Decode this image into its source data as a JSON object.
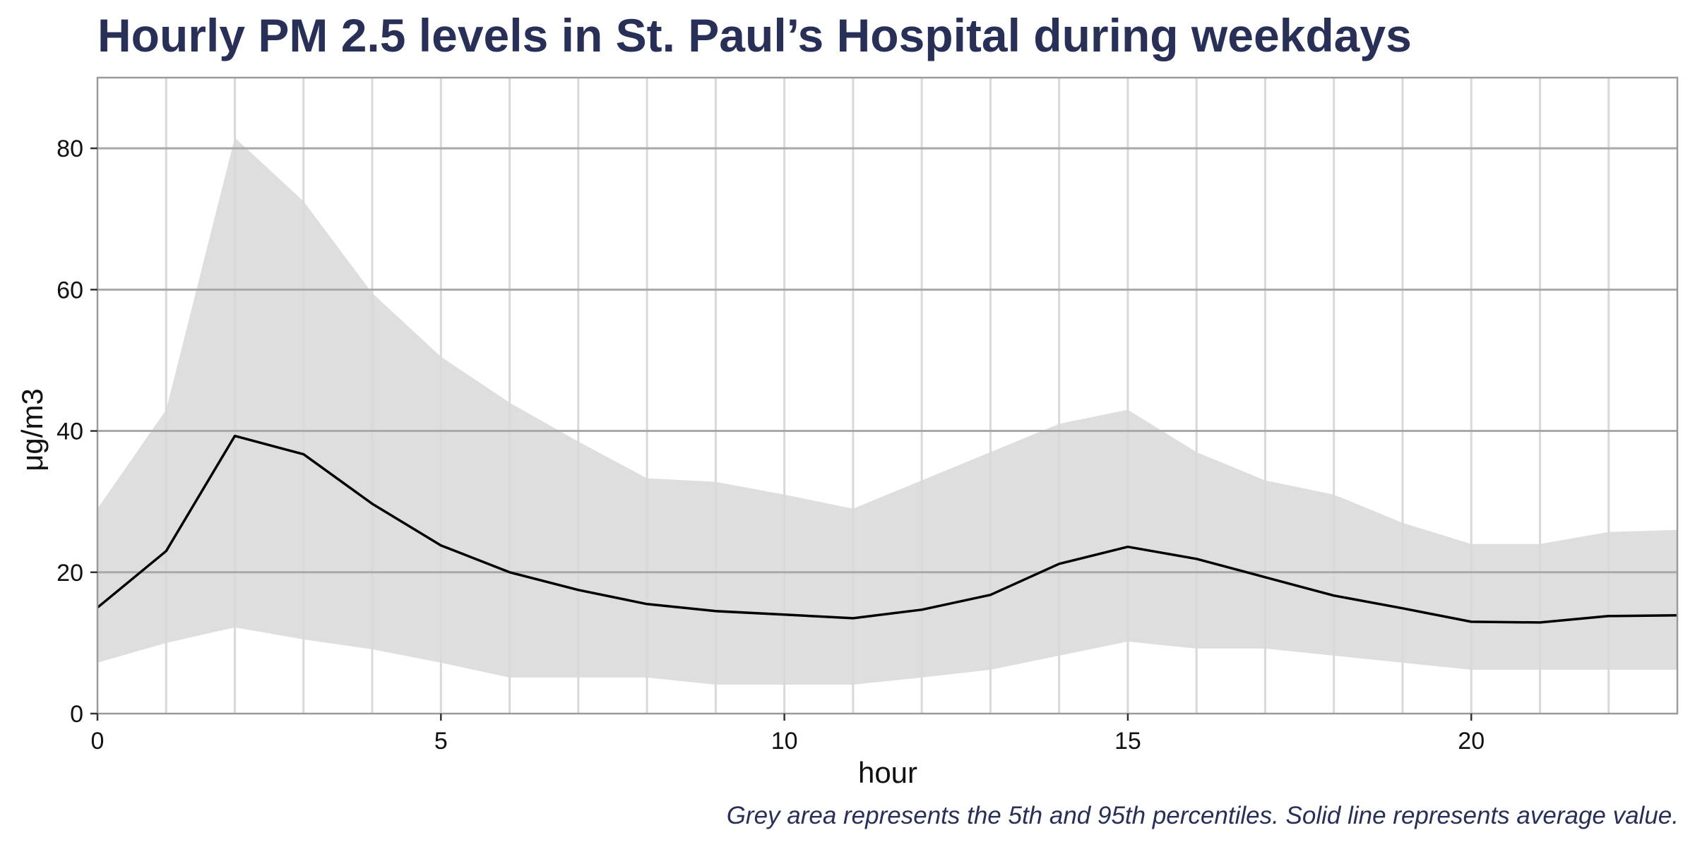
{
  "chart_data": {
    "type": "area",
    "title": "Hourly PM 2.5 levels in St. Paul’s Hospital during weekdays",
    "xlabel": "hour",
    "ylabel": "μg/m3",
    "caption": "Grey area represents the 5th and 95th percentiles. Solid line represents average value.",
    "x": [
      0,
      1,
      2,
      3,
      4,
      5,
      6,
      7,
      8,
      9,
      10,
      11,
      12,
      13,
      14,
      15,
      16,
      17,
      18,
      19,
      20,
      21,
      22,
      23
    ],
    "xlim": [
      0,
      23
    ],
    "ylim": [
      0,
      90
    ],
    "x_ticks": [
      0,
      5,
      10,
      15,
      20
    ],
    "y_ticks": [
      0,
      20,
      40,
      60,
      80
    ],
    "grid": true,
    "series": [
      {
        "role": "95th percentile (upper bound of grey area)",
        "values": [
          29,
          43,
          81.5,
          72.5,
          59.5,
          50.5,
          44,
          38.5,
          33.3,
          32.8,
          31,
          29,
          33,
          37,
          41,
          43,
          37,
          33,
          31,
          27,
          24,
          24,
          25.7,
          26
        ]
      },
      {
        "role": "average (solid line)",
        "values": [
          15,
          23,
          39.3,
          36.7,
          29.7,
          23.8,
          20,
          17.5,
          15.5,
          14.5,
          14,
          13.5,
          14.7,
          16.8,
          21.2,
          23.6,
          21.9,
          19.3,
          16.7,
          14.9,
          13,
          12.9,
          13.8,
          13.9
        ]
      },
      {
        "role": "5th percentile (lower bound of grey area)",
        "values": [
          7.2,
          10,
          12.2,
          10.5,
          9.1,
          7.2,
          5.1,
          5.1,
          5.1,
          4.1,
          4.1,
          4.1,
          5.1,
          6.2,
          8.2,
          10.2,
          9.2,
          9.2,
          8.2,
          7.2,
          6.2,
          6.2,
          6.2,
          6.2
        ]
      }
    ],
    "colors": {
      "band": "#dedede",
      "line": "#000000",
      "title": "#283058",
      "major_grid": "#a9a9a9",
      "minor_grid": "#d9d9d9",
      "frame": "#9a9a9a"
    }
  }
}
